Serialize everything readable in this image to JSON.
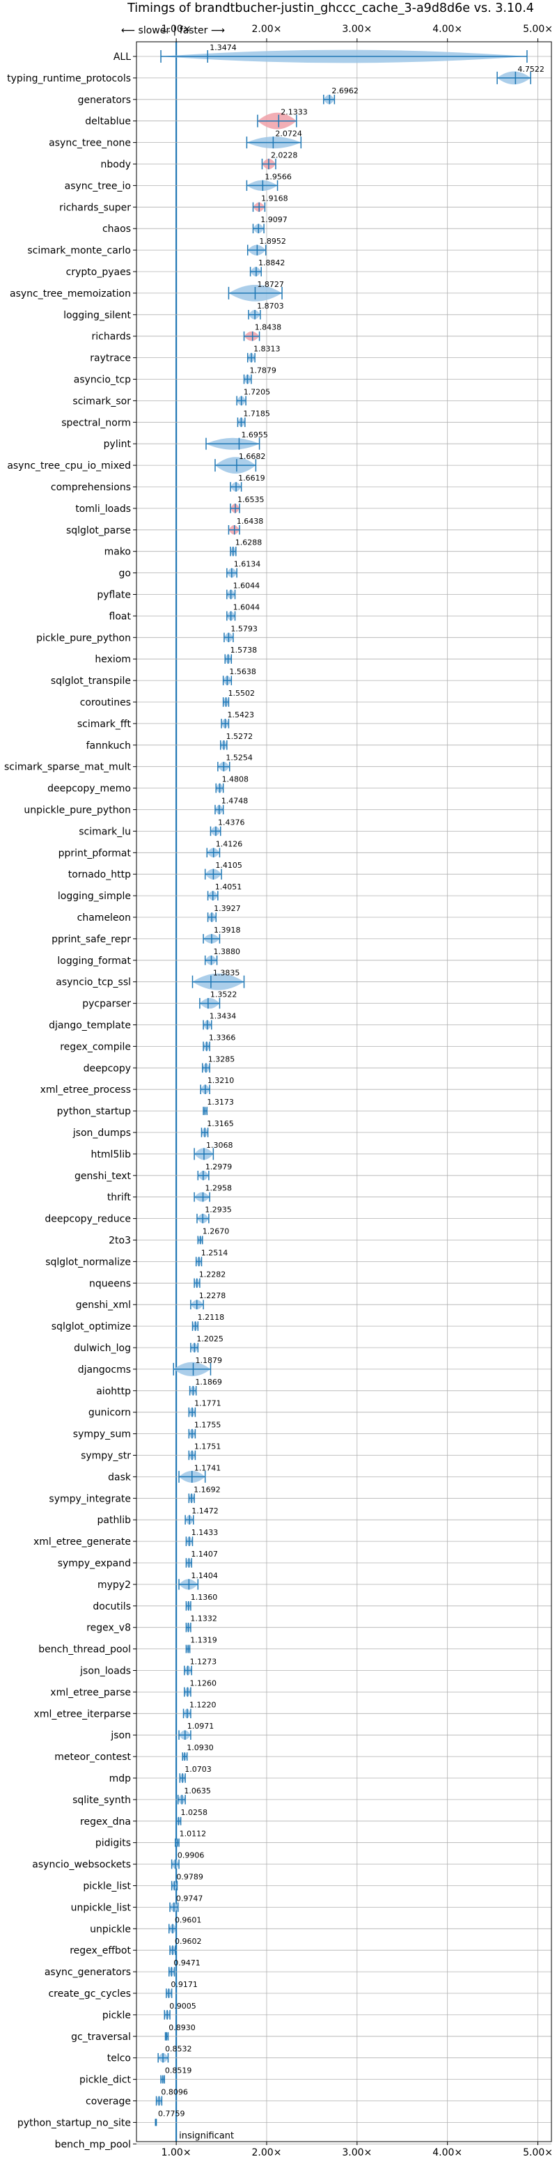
{
  "chart_data": {
    "type": "violin",
    "title": "Timings of brandtbucher-justin_ghccc_cache_3-a9d8d6e vs. 3.10.4",
    "direction_label": "⟵ slower | faster ⟶",
    "xlim": [
      0.56,
      5.15
    ],
    "xticks": [
      {
        "value": 1,
        "label": "1.00×"
      },
      {
        "value": 2,
        "label": "2.00×"
      },
      {
        "value": 3,
        "label": "3.00×"
      },
      {
        "value": 4,
        "label": "4.00×"
      },
      {
        "value": 5,
        "label": "5.00×"
      }
    ],
    "grid": true,
    "annotation": "insignificant",
    "colors": {
      "violin": "#9cc5e6",
      "violin_highlight": "#f0a0a8",
      "line": "#1f77b4",
      "grid": "#b0b0b0"
    },
    "benchmarks": [
      {
        "name": "ALL",
        "value": 1.3474,
        "lo": 0.83,
        "hi": 4.88,
        "w": 0.55,
        "hl": false
      },
      {
        "name": "typing_runtime_protocols",
        "value": 4.7522,
        "lo": 4.55,
        "hi": 4.92,
        "w": 0.55,
        "hl": false
      },
      {
        "name": "generators",
        "value": 2.6962,
        "lo": 2.63,
        "hi": 2.75,
        "w": 0.4,
        "hl": false
      },
      {
        "name": "deltablue",
        "value": 2.1333,
        "lo": 1.9,
        "hi": 2.33,
        "w": 0.7,
        "hl": true
      },
      {
        "name": "async_tree_none",
        "value": 2.0724,
        "lo": 1.78,
        "hi": 2.38,
        "w": 0.5,
        "hl": false
      },
      {
        "name": "nbody",
        "value": 2.0228,
        "lo": 1.95,
        "hi": 2.1,
        "w": 0.45,
        "hl": true
      },
      {
        "name": "async_tree_io",
        "value": 1.9566,
        "lo": 1.78,
        "hi": 2.12,
        "w": 0.45,
        "hl": false
      },
      {
        "name": "richards_super",
        "value": 1.9168,
        "lo": 1.85,
        "hi": 1.98,
        "w": 0.4,
        "hl": true
      },
      {
        "name": "chaos",
        "value": 1.9097,
        "lo": 1.85,
        "hi": 1.97,
        "w": 0.4,
        "hl": false
      },
      {
        "name": "scimark_monte_carlo",
        "value": 1.8952,
        "lo": 1.79,
        "hi": 1.99,
        "w": 0.45,
        "hl": false
      },
      {
        "name": "crypto_pyaes",
        "value": 1.8842,
        "lo": 1.82,
        "hi": 1.94,
        "w": 0.4,
        "hl": false
      },
      {
        "name": "async_tree_memoization",
        "value": 1.8727,
        "lo": 1.58,
        "hi": 2.17,
        "w": 0.7,
        "hl": false
      },
      {
        "name": "logging_silent",
        "value": 1.8703,
        "lo": 1.8,
        "hi": 1.93,
        "w": 0.4,
        "hl": false
      },
      {
        "name": "richards",
        "value": 1.8438,
        "lo": 1.75,
        "hi": 1.92,
        "w": 0.4,
        "hl": true
      },
      {
        "name": "raytrace",
        "value": 1.8313,
        "lo": 1.79,
        "hi": 1.87,
        "w": 0.4,
        "hl": false
      },
      {
        "name": "asyncio_tcp",
        "value": 1.7879,
        "lo": 1.75,
        "hi": 1.83,
        "w": 0.4,
        "hl": false
      },
      {
        "name": "scimark_sor",
        "value": 1.7205,
        "lo": 1.67,
        "hi": 1.77,
        "w": 0.4,
        "hl": false
      },
      {
        "name": "spectral_norm",
        "value": 1.7185,
        "lo": 1.68,
        "hi": 1.76,
        "w": 0.4,
        "hl": false
      },
      {
        "name": "pylint",
        "value": 1.6955,
        "lo": 1.33,
        "hi": 1.92,
        "w": 0.5,
        "hl": false
      },
      {
        "name": "async_tree_cpu_io_mixed",
        "value": 1.6682,
        "lo": 1.43,
        "hi": 1.88,
        "w": 0.7,
        "hl": false
      },
      {
        "name": "comprehensions",
        "value": 1.6619,
        "lo": 1.6,
        "hi": 1.72,
        "w": 0.4,
        "hl": false
      },
      {
        "name": "tomli_loads",
        "value": 1.6535,
        "lo": 1.6,
        "hi": 1.7,
        "w": 0.4,
        "hl": true
      },
      {
        "name": "sqlglot_parse",
        "value": 1.6438,
        "lo": 1.58,
        "hi": 1.7,
        "w": 0.4,
        "hl": true
      },
      {
        "name": "mako",
        "value": 1.6288,
        "lo": 1.6,
        "hi": 1.66,
        "w": 0.4,
        "hl": false
      },
      {
        "name": "go",
        "value": 1.6134,
        "lo": 1.56,
        "hi": 1.67,
        "w": 0.4,
        "hl": false
      },
      {
        "name": "pyflate",
        "value": 1.6044,
        "lo": 1.56,
        "hi": 1.65,
        "w": 0.4,
        "hl": false
      },
      {
        "name": "float",
        "value": 1.6044,
        "lo": 1.56,
        "hi": 1.65,
        "w": 0.4,
        "hl": false
      },
      {
        "name": "pickle_pure_python",
        "value": 1.5793,
        "lo": 1.53,
        "hi": 1.63,
        "w": 0.4,
        "hl": false
      },
      {
        "name": "hexiom",
        "value": 1.5738,
        "lo": 1.54,
        "hi": 1.61,
        "w": 0.4,
        "hl": false
      },
      {
        "name": "sqlglot_transpile",
        "value": 1.5638,
        "lo": 1.52,
        "hi": 1.61,
        "w": 0.4,
        "hl": false
      },
      {
        "name": "coroutines",
        "value": 1.5502,
        "lo": 1.52,
        "hi": 1.58,
        "w": 0.4,
        "hl": false
      },
      {
        "name": "scimark_fft",
        "value": 1.5423,
        "lo": 1.5,
        "hi": 1.58,
        "w": 0.4,
        "hl": false
      },
      {
        "name": "fannkuch",
        "value": 1.5272,
        "lo": 1.49,
        "hi": 1.56,
        "w": 0.4,
        "hl": false
      },
      {
        "name": "scimark_sparse_mat_mult",
        "value": 1.5254,
        "lo": 1.46,
        "hi": 1.59,
        "w": 0.4,
        "hl": false
      },
      {
        "name": "deepcopy_memo",
        "value": 1.4808,
        "lo": 1.44,
        "hi": 1.52,
        "w": 0.4,
        "hl": false
      },
      {
        "name": "unpickle_pure_python",
        "value": 1.4748,
        "lo": 1.43,
        "hi": 1.52,
        "w": 0.4,
        "hl": false
      },
      {
        "name": "scimark_lu",
        "value": 1.4376,
        "lo": 1.38,
        "hi": 1.49,
        "w": 0.4,
        "hl": false
      },
      {
        "name": "pprint_pformat",
        "value": 1.4126,
        "lo": 1.34,
        "hi": 1.48,
        "w": 0.4,
        "hl": false
      },
      {
        "name": "tornado_http",
        "value": 1.4105,
        "lo": 1.32,
        "hi": 1.5,
        "w": 0.45,
        "hl": false
      },
      {
        "name": "logging_simple",
        "value": 1.4051,
        "lo": 1.35,
        "hi": 1.46,
        "w": 0.4,
        "hl": false
      },
      {
        "name": "chameleon",
        "value": 1.3927,
        "lo": 1.35,
        "hi": 1.44,
        "w": 0.4,
        "hl": false
      },
      {
        "name": "pprint_safe_repr",
        "value": 1.3918,
        "lo": 1.3,
        "hi": 1.48,
        "w": 0.4,
        "hl": false
      },
      {
        "name": "logging_format",
        "value": 1.388,
        "lo": 1.32,
        "hi": 1.45,
        "w": 0.4,
        "hl": false
      },
      {
        "name": "asyncio_tcp_ssl",
        "value": 1.3835,
        "lo": 1.18,
        "hi": 1.75,
        "w": 0.7,
        "hl": false
      },
      {
        "name": "pycparser",
        "value": 1.3522,
        "lo": 1.26,
        "hi": 1.48,
        "w": 0.45,
        "hl": false
      },
      {
        "name": "django_template",
        "value": 1.3434,
        "lo": 1.3,
        "hi": 1.39,
        "w": 0.4,
        "hl": false
      },
      {
        "name": "regex_compile",
        "value": 1.3366,
        "lo": 1.3,
        "hi": 1.37,
        "w": 0.4,
        "hl": false
      },
      {
        "name": "deepcopy",
        "value": 1.3285,
        "lo": 1.29,
        "hi": 1.37,
        "w": 0.4,
        "hl": false
      },
      {
        "name": "xml_etree_process",
        "value": 1.321,
        "lo": 1.27,
        "hi": 1.37,
        "w": 0.4,
        "hl": false
      },
      {
        "name": "python_startup",
        "value": 1.3173,
        "lo": 1.3,
        "hi": 1.34,
        "w": 0.35,
        "hl": false
      },
      {
        "name": "json_dumps",
        "value": 1.3165,
        "lo": 1.28,
        "hi": 1.35,
        "w": 0.4,
        "hl": false
      },
      {
        "name": "html5lib",
        "value": 1.3068,
        "lo": 1.2,
        "hi": 1.41,
        "w": 0.5,
        "hl": false
      },
      {
        "name": "genshi_text",
        "value": 1.2979,
        "lo": 1.24,
        "hi": 1.36,
        "w": 0.4,
        "hl": false
      },
      {
        "name": "thrift",
        "value": 1.2958,
        "lo": 1.2,
        "hi": 1.37,
        "w": 0.4,
        "hl": false
      },
      {
        "name": "deepcopy_reduce",
        "value": 1.2935,
        "lo": 1.23,
        "hi": 1.36,
        "w": 0.4,
        "hl": false
      },
      {
        "name": "2to3",
        "value": 1.267,
        "lo": 1.24,
        "hi": 1.29,
        "w": 0.35,
        "hl": false
      },
      {
        "name": "sqlglot_normalize",
        "value": 1.2514,
        "lo": 1.22,
        "hi": 1.28,
        "w": 0.4,
        "hl": false
      },
      {
        "name": "nqueens",
        "value": 1.2282,
        "lo": 1.2,
        "hi": 1.26,
        "w": 0.4,
        "hl": false
      },
      {
        "name": "genshi_xml",
        "value": 1.2278,
        "lo": 1.16,
        "hi": 1.3,
        "w": 0.4,
        "hl": false
      },
      {
        "name": "sqlglot_optimize",
        "value": 1.2118,
        "lo": 1.18,
        "hi": 1.24,
        "w": 0.4,
        "hl": false
      },
      {
        "name": "dulwich_log",
        "value": 1.2025,
        "lo": 1.16,
        "hi": 1.24,
        "w": 0.4,
        "hl": false
      },
      {
        "name": "djangocms",
        "value": 1.1879,
        "lo": 0.97,
        "hi": 1.38,
        "w": 0.6,
        "hl": false
      },
      {
        "name": "aiohttp",
        "value": 1.1869,
        "lo": 1.15,
        "hi": 1.22,
        "w": 0.4,
        "hl": false
      },
      {
        "name": "gunicorn",
        "value": 1.1771,
        "lo": 1.14,
        "hi": 1.21,
        "w": 0.4,
        "hl": false
      },
      {
        "name": "sympy_sum",
        "value": 1.1755,
        "lo": 1.14,
        "hi": 1.21,
        "w": 0.4,
        "hl": false
      },
      {
        "name": "sympy_str",
        "value": 1.1751,
        "lo": 1.14,
        "hi": 1.21,
        "w": 0.4,
        "hl": false
      },
      {
        "name": "dask",
        "value": 1.1741,
        "lo": 1.03,
        "hi": 1.32,
        "w": 0.5,
        "hl": false
      },
      {
        "name": "sympy_integrate",
        "value": 1.1692,
        "lo": 1.14,
        "hi": 1.2,
        "w": 0.4,
        "hl": false
      },
      {
        "name": "pathlib",
        "value": 1.1472,
        "lo": 1.1,
        "hi": 1.19,
        "w": 0.4,
        "hl": false
      },
      {
        "name": "xml_etree_generate",
        "value": 1.1433,
        "lo": 1.11,
        "hi": 1.18,
        "w": 0.4,
        "hl": false
      },
      {
        "name": "sympy_expand",
        "value": 1.1407,
        "lo": 1.11,
        "hi": 1.17,
        "w": 0.4,
        "hl": false
      },
      {
        "name": "mypy2",
        "value": 1.1404,
        "lo": 1.03,
        "hi": 1.24,
        "w": 0.45,
        "hl": false
      },
      {
        "name": "docutils",
        "value": 1.136,
        "lo": 1.11,
        "hi": 1.16,
        "w": 0.4,
        "hl": false
      },
      {
        "name": "regex_v8",
        "value": 1.1332,
        "lo": 1.11,
        "hi": 1.16,
        "w": 0.4,
        "hl": false
      },
      {
        "name": "bench_thread_pool",
        "value": 1.1319,
        "lo": 1.11,
        "hi": 1.15,
        "w": 0.35,
        "hl": false
      },
      {
        "name": "json_loads",
        "value": 1.1273,
        "lo": 1.09,
        "hi": 1.17,
        "w": 0.4,
        "hl": false
      },
      {
        "name": "xml_etree_parse",
        "value": 1.126,
        "lo": 1.09,
        "hi": 1.16,
        "w": 0.4,
        "hl": false
      },
      {
        "name": "xml_etree_iterparse",
        "value": 1.122,
        "lo": 1.08,
        "hi": 1.16,
        "w": 0.4,
        "hl": false
      },
      {
        "name": "json",
        "value": 1.0971,
        "lo": 1.03,
        "hi": 1.16,
        "w": 0.4,
        "hl": false
      },
      {
        "name": "meteor_contest",
        "value": 1.093,
        "lo": 1.07,
        "hi": 1.12,
        "w": 0.35,
        "hl": false
      },
      {
        "name": "mdp",
        "value": 1.0703,
        "lo": 1.04,
        "hi": 1.1,
        "w": 0.4,
        "hl": false
      },
      {
        "name": "sqlite_synth",
        "value": 1.0635,
        "lo": 1.02,
        "hi": 1.1,
        "w": 0.4,
        "hl": false
      },
      {
        "name": "regex_dna",
        "value": 1.0258,
        "lo": 1.0,
        "hi": 1.05,
        "w": 0.35,
        "hl": false
      },
      {
        "name": "pidigits",
        "value": 1.0112,
        "lo": 0.99,
        "hi": 1.03,
        "w": 0.35,
        "hl": false
      },
      {
        "name": "asyncio_websockets",
        "value": 0.9906,
        "lo": 0.95,
        "hi": 1.03,
        "w": 0.4,
        "hl": false
      },
      {
        "name": "pickle_list",
        "value": 0.9789,
        "lo": 0.95,
        "hi": 1.01,
        "w": 0.4,
        "hl": false
      },
      {
        "name": "unpickle_list",
        "value": 0.9747,
        "lo": 0.93,
        "hi": 1.02,
        "w": 0.4,
        "hl": false
      },
      {
        "name": "unpickle",
        "value": 0.9601,
        "lo": 0.92,
        "hi": 1.0,
        "w": 0.4,
        "hl": false
      },
      {
        "name": "regex_effbot",
        "value": 0.9602,
        "lo": 0.93,
        "hi": 0.99,
        "w": 0.4,
        "hl": false
      },
      {
        "name": "async_generators",
        "value": 0.9471,
        "lo": 0.92,
        "hi": 0.98,
        "w": 0.4,
        "hl": false
      },
      {
        "name": "create_gc_cycles",
        "value": 0.9171,
        "lo": 0.89,
        "hi": 0.95,
        "w": 0.4,
        "hl": false
      },
      {
        "name": "pickle",
        "value": 0.9005,
        "lo": 0.87,
        "hi": 0.93,
        "w": 0.4,
        "hl": false
      },
      {
        "name": "gc_traversal",
        "value": 0.893,
        "lo": 0.88,
        "hi": 0.91,
        "w": 0.35,
        "hl": false
      },
      {
        "name": "telco",
        "value": 0.8532,
        "lo": 0.8,
        "hi": 0.91,
        "w": 0.4,
        "hl": false
      },
      {
        "name": "pickle_dict",
        "value": 0.8519,
        "lo": 0.83,
        "hi": 0.87,
        "w": 0.35,
        "hl": false
      },
      {
        "name": "coverage",
        "value": 0.8096,
        "lo": 0.78,
        "hi": 0.84,
        "w": 0.4,
        "hl": false
      },
      {
        "name": "python_startup_no_site",
        "value": 0.7759,
        "lo": 0.77,
        "hi": 0.78,
        "w": 0.3,
        "hl": false
      },
      {
        "name": "bench_mp_pool",
        "value": null,
        "lo": null,
        "hi": null,
        "w": 0,
        "hl": false
      }
    ]
  }
}
